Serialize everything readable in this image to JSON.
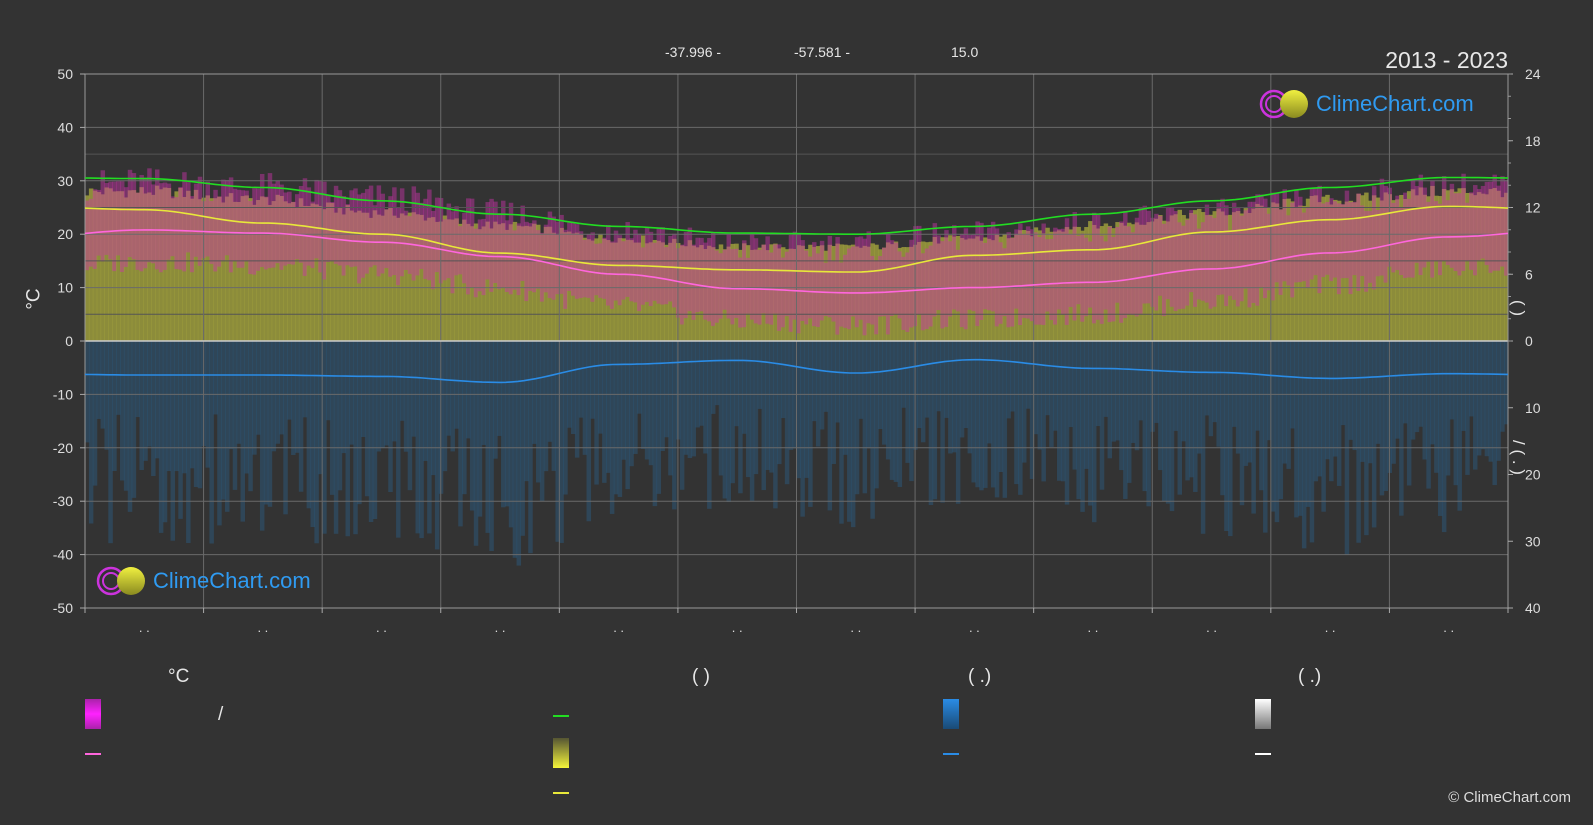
{
  "header": {
    "lat_fragment": "-37.996 -",
    "lon_fragment": "-57.581 -",
    "elev_fragment": "15.0",
    "period": "2013 - 2023"
  },
  "logo": {
    "text": "ClimeChart.com"
  },
  "copyright": "© ClimeChart.com",
  "colors": {
    "background": "#333333",
    "grid": "#6a6a6a",
    "daylight": "#22dd22",
    "sunshine": "#e8e83a",
    "temp_mean": "#ff66dd",
    "temp_band": "#cc33aa",
    "sunshine_band": "#9c9c3c",
    "precip": "#2a8ce6",
    "precip_band": "#2a5e85",
    "snow": "#ffffff",
    "logo_blue": "#2f9bf2"
  },
  "chart_data": {
    "type": "line",
    "x": [
      0.5,
      1.5,
      2.5,
      3.5,
      4.5,
      5.5,
      6.5,
      7.5,
      8.5,
      9.5,
      10.5,
      11.5
    ],
    "x_range": [
      0,
      12
    ],
    "month_tick_labels": [
      ". .",
      ". .",
      ". .",
      ". .",
      ". .",
      ". .",
      ". .",
      ". .",
      ". .",
      ". .",
      ". .",
      ". ."
    ],
    "left_axis": {
      "label": "°C",
      "range": [
        -50,
        50
      ],
      "ticks": [
        50,
        40,
        30,
        20,
        10,
        0,
        -10,
        -20,
        -30,
        -40,
        -50
      ]
    },
    "right_axis_top": {
      "label": "(   )",
      "range": [
        0,
        24
      ],
      "ticks": [
        24,
        18,
        12,
        6,
        0
      ]
    },
    "right_axis_bottom": {
      "label": "/  ( . )",
      "range": [
        0,
        40
      ],
      "ticks": [
        0,
        10,
        20,
        30,
        40
      ]
    },
    "grid": true,
    "series": [
      {
        "key": "daylight",
        "axis": "hours",
        "values": [
          14.6,
          13.8,
          12.6,
          11.4,
          10.3,
          9.7,
          9.6,
          10.3,
          11.4,
          12.6,
          13.8,
          14.7
        ]
      },
      {
        "key": "sunshine",
        "axis": "hours",
        "values": [
          11.8,
          10.6,
          9.6,
          7.9,
          6.8,
          6.4,
          6.2,
          7.7,
          8.2,
          9.8,
          10.9,
          12.1
        ]
      },
      {
        "key": "temp_mean",
        "axis": "temperature",
        "values": [
          20.8,
          20.2,
          18.5,
          15.8,
          12.5,
          9.8,
          9.0,
          10.0,
          11.0,
          13.5,
          16.5,
          19.5
        ]
      },
      {
        "key": "precip",
        "axis": "precipitation",
        "values": [
          5.1,
          5.1,
          5.3,
          6.2,
          3.5,
          2.9,
          4.8,
          2.8,
          4.1,
          4.7,
          5.6,
          4.9
        ]
      }
    ],
    "bands": {
      "temp_max_daily": [
        29,
        28,
        26,
        23,
        20,
        17,
        17,
        19,
        21,
        23,
        26,
        28
      ],
      "sunshine_fill_hours": [
        14.0,
        13.2,
        12.0,
        10.8,
        9.6,
        8.8,
        8.8,
        9.6,
        10.8,
        12.0,
        13.2,
        14.0
      ],
      "precip_typical": [
        22,
        22,
        23,
        25,
        20,
        18,
        20,
        18,
        20,
        21,
        23,
        22
      ]
    }
  },
  "legend": {
    "col1_header": "°C",
    "col1_row1_text": "/",
    "col2_header": "(          )",
    "col3_header": "(   .)",
    "col4_header": "(   .)"
  }
}
